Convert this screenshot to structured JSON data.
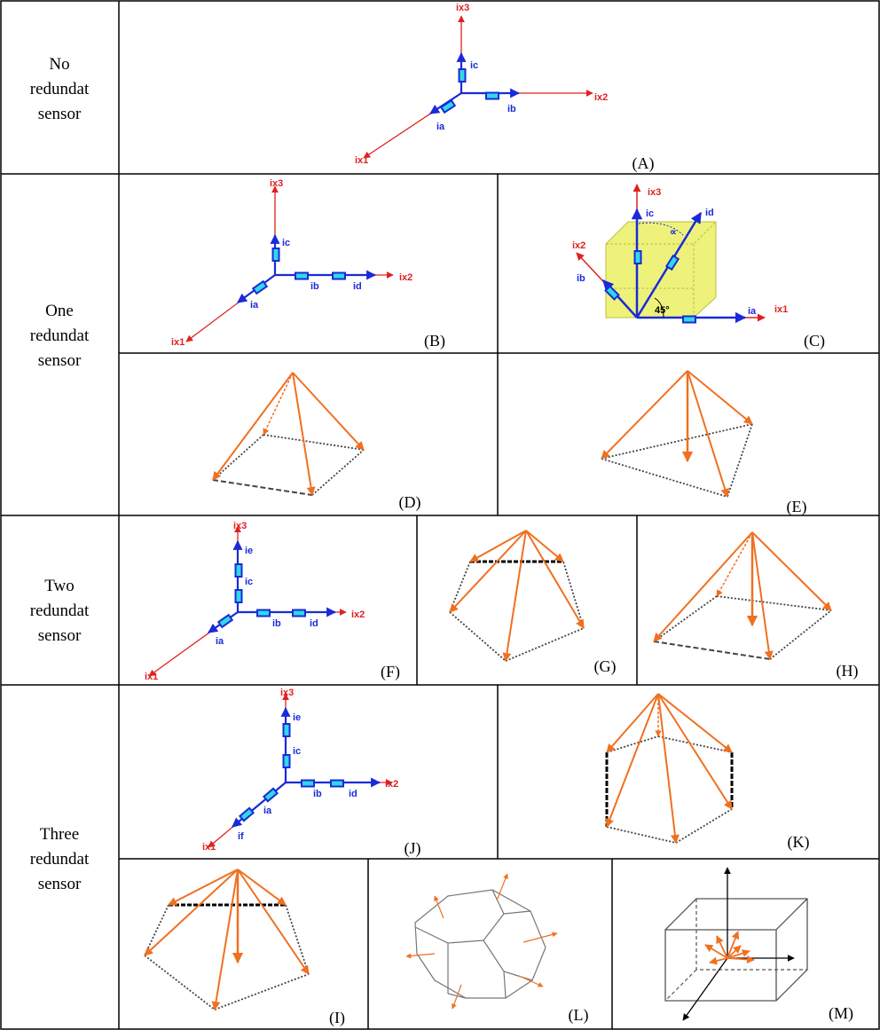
{
  "rows": [
    {
      "label": [
        "No",
        "redundat",
        "sensor"
      ]
    },
    {
      "label": [
        "One",
        "redundat",
        "sensor"
      ]
    },
    {
      "label": [
        "Two",
        "redundat",
        "sensor"
      ]
    },
    {
      "label": [
        "Three",
        "redundat",
        "sensor"
      ]
    }
  ],
  "panels": [
    {
      "caption": "(A)",
      "labels": [
        "ix3",
        "ic",
        "ix2",
        "ib",
        "ia",
        "ix1"
      ]
    },
    {
      "caption": "(B)",
      "labels": [
        "ix3",
        "ic",
        "ix2",
        "ib",
        "id",
        "ia",
        "ix1"
      ]
    },
    {
      "caption": "(C)",
      "labels": [
        "ix3",
        "ic",
        "id",
        "∝",
        "ix2",
        "ib",
        "45°",
        "ia",
        "ix1"
      ]
    },
    {
      "caption": "(D)"
    },
    {
      "caption": "(E)"
    },
    {
      "caption": "(F)",
      "labels": [
        "ix3",
        "ie",
        "ic",
        "ix2",
        "ib",
        "id",
        "ia",
        "ix1"
      ]
    },
    {
      "caption": "(G)"
    },
    {
      "caption": "(H)"
    },
    {
      "caption": "(J)",
      "labels": [
        "ix3",
        "ie",
        "ic",
        "ix2",
        "ib",
        "id",
        "ia",
        "if",
        "ix1"
      ]
    },
    {
      "caption": "(K)"
    },
    {
      "caption": "(I)"
    },
    {
      "caption": "(L)"
    },
    {
      "caption": "(M)"
    }
  ]
}
